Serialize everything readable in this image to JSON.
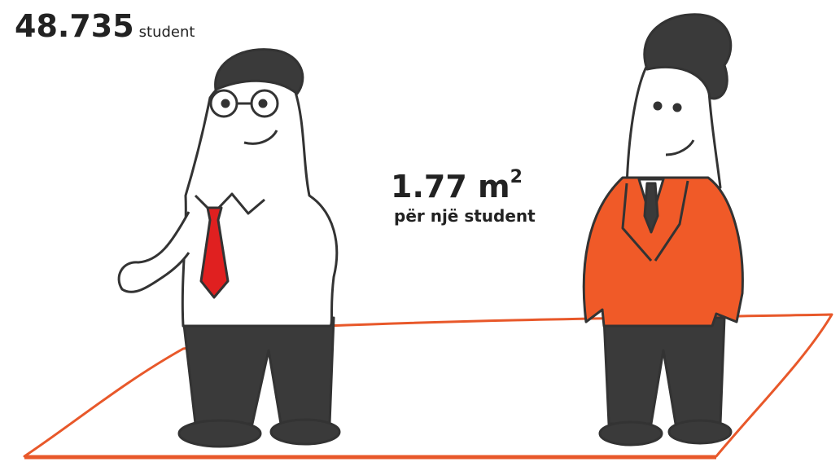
{
  "stat": {
    "value": "48.735",
    "unit": "student"
  },
  "area": {
    "value": "1.77 m",
    "exponent": "2",
    "caption": "për një student"
  }
}
